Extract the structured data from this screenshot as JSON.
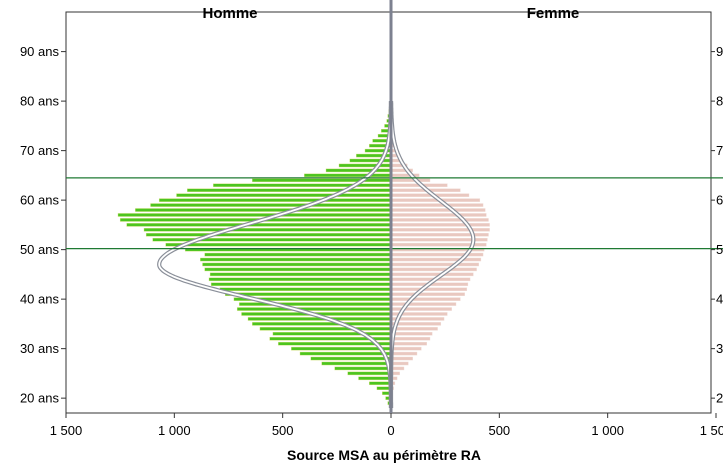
{
  "chart_data": {
    "type": "bar",
    "orientation": "horizontal",
    "subtype": "population-pyramid",
    "left_title": "Homme",
    "right_title": "Femme",
    "xlabel": "Source MSA au périmètre RA",
    "x_ticks": [
      1500,
      1000,
      500,
      0,
      500,
      1000,
      1500
    ],
    "x_tick_labels": [
      "1 500",
      "1 000",
      "500",
      "0",
      "500",
      "1 000",
      "1 500"
    ],
    "xlim": [
      -1500,
      1500
    ],
    "ylim": [
      17,
      98
    ],
    "y_ticks": [
      20,
      30,
      40,
      50,
      60,
      70,
      80,
      90
    ],
    "y_tick_labels": [
      "20 ans",
      "30 ans",
      "40 ans",
      "50 ans",
      "60 ans",
      "70 ans",
      "80 ans",
      "90 ans"
    ],
    "right_y_tick_labels": [
      "2",
      "3",
      "4",
      "5",
      "6",
      "7",
      "8",
      "9"
    ],
    "reference_lines_age": [
      50.2,
      64.5
    ],
    "ages": [
      18,
      19,
      20,
      21,
      22,
      23,
      24,
      25,
      26,
      27,
      28,
      29,
      30,
      31,
      32,
      33,
      34,
      35,
      36,
      37,
      38,
      39,
      40,
      41,
      42,
      43,
      44,
      45,
      46,
      47,
      48,
      49,
      50,
      51,
      52,
      53,
      54,
      55,
      56,
      57,
      58,
      59,
      60,
      61,
      62,
      63,
      64,
      65,
      66,
      67,
      68,
      69,
      70,
      71,
      72,
      73,
      74,
      75,
      76,
      77,
      78,
      79,
      80,
      81,
      82,
      83,
      84,
      85
    ],
    "series": [
      {
        "name": "Homme",
        "color": "#4cc51f",
        "values": [
          5,
          15,
          25,
          40,
          65,
          100,
          150,
          200,
          260,
          320,
          370,
          420,
          460,
          520,
          560,
          545,
          605,
          640,
          660,
          690,
          710,
          700,
          725,
          765,
          790,
          830,
          840,
          835,
          860,
          870,
          880,
          860,
          950,
          1040,
          1100,
          1130,
          1140,
          1220,
          1250,
          1260,
          1180,
          1110,
          1070,
          990,
          940,
          820,
          640,
          400,
          300,
          240,
          190,
          160,
          120,
          100,
          85,
          60,
          45,
          30,
          20,
          15,
          10,
          8,
          6,
          5,
          4,
          3,
          2,
          1
        ]
      },
      {
        "name": "Femme",
        "color": "#e9c8c0",
        "values": [
          2,
          4,
          6,
          8,
          12,
          18,
          28,
          40,
          60,
          80,
          100,
          120,
          140,
          165,
          180,
          190,
          215,
          230,
          245,
          260,
          280,
          300,
          320,
          340,
          350,
          355,
          365,
          380,
          395,
          405,
          415,
          425,
          430,
          440,
          445,
          450,
          455,
          455,
          450,
          440,
          435,
          425,
          410,
          360,
          320,
          260,
          180,
          130,
          100,
          75,
          55,
          40,
          28,
          20,
          14,
          10,
          8,
          6,
          4,
          3,
          2,
          2,
          1,
          1,
          1,
          1,
          1,
          0
        ]
      }
    ],
    "curves": [
      {
        "name": "Homme",
        "side": "left",
        "amplitude": 1070,
        "mean": 47,
        "sd_below": 6.8,
        "sd_above": 8.3
      },
      {
        "name": "Femme",
        "side": "right",
        "amplitude": 380,
        "mean": 52,
        "sd_below": 7.2,
        "sd_above": 7.8
      }
    ],
    "grid": false,
    "legend": "none"
  }
}
